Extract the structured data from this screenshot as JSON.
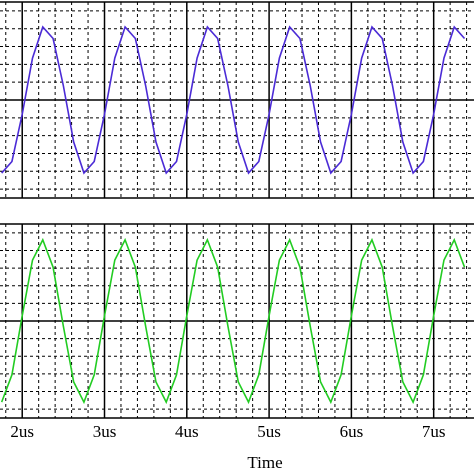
{
  "chart_data": [
    {
      "type": "line",
      "x": [
        1.75,
        1.875,
        2,
        2.125,
        2.25,
        2.375,
        2.5,
        2.625,
        2.75,
        2.875,
        3,
        3.125,
        3.25,
        3.375,
        3.5,
        3.625,
        3.75,
        3.875,
        4,
        4.125,
        4.25,
        4.375,
        4.5,
        4.625,
        4.75,
        4.875,
        5,
        5.125,
        5.25,
        5.375,
        5.5,
        5.625,
        5.75,
        5.875,
        6,
        6.125,
        6.25,
        6.375,
        6.5,
        6.625,
        6.75,
        6.875,
        7,
        7.125,
        7.25,
        7.375
      ],
      "series": [
        {
          "color": "#4b2bd6",
          "values": [
            -0.82,
            -0.69,
            -0.16,
            0.47,
            0.82,
            0.69,
            0.16,
            -0.47,
            -0.82,
            -0.69,
            -0.16,
            0.47,
            0.82,
            0.69,
            0.16,
            -0.47,
            -0.82,
            -0.69,
            -0.16,
            0.47,
            0.82,
            0.69,
            0.16,
            -0.47,
            -0.82,
            -0.69,
            -0.16,
            0.47,
            0.82,
            0.69,
            0.16,
            -0.47,
            -0.82,
            -0.69,
            -0.16,
            0.47,
            0.82,
            0.69,
            0.16,
            -0.47,
            -0.82,
            -0.69,
            -0.16,
            0.47,
            0.82,
            0.69
          ]
        }
      ],
      "xlim": [
        1.73,
        7.49
      ],
      "ylim": [
        -1.1,
        1.1
      ],
      "xticks": [
        2,
        3,
        4,
        5,
        6,
        7
      ],
      "minor_xticks": [
        1.8,
        2.2,
        2.4,
        2.6,
        2.8,
        3.2,
        3.4,
        3.6,
        3.8,
        4.2,
        4.4,
        4.6,
        4.8,
        5.2,
        5.4,
        5.6,
        5.8,
        6.2,
        6.4,
        6.6,
        6.8,
        7.2,
        7.4
      ],
      "yticks": [
        -1,
        -0.8,
        -0.6,
        -0.4,
        -0.2,
        0,
        0.2,
        0.4,
        0.6,
        0.8,
        1
      ],
      "grid": true
    },
    {
      "type": "line",
      "x": [
        1.75,
        1.875,
        2,
        2.125,
        2.25,
        2.375,
        2.5,
        2.625,
        2.75,
        2.875,
        3,
        3.125,
        3.25,
        3.375,
        3.5,
        3.625,
        3.75,
        3.875,
        4,
        4.125,
        4.25,
        4.375,
        4.5,
        4.625,
        4.75,
        4.875,
        5,
        5.125,
        5.25,
        5.375,
        5.5,
        5.625,
        5.75,
        5.875,
        6,
        6.125,
        6.25,
        6.375,
        6.5,
        6.625,
        6.75,
        6.875,
        7,
        7.125,
        7.25,
        7.375
      ],
      "series": [
        {
          "color": "#22cc22",
          "values": [
            -0.92,
            -0.61,
            0.06,
            0.69,
            0.92,
            0.61,
            -0.06,
            -0.69,
            -0.92,
            -0.61,
            0.06,
            0.69,
            0.92,
            0.61,
            -0.06,
            -0.69,
            -0.92,
            -0.61,
            0.06,
            0.69,
            0.92,
            0.61,
            -0.06,
            -0.69,
            -0.92,
            -0.61,
            0.06,
            0.69,
            0.92,
            0.61,
            -0.06,
            -0.69,
            -0.92,
            -0.61,
            0.06,
            0.69,
            0.92,
            0.61,
            -0.06,
            -0.69,
            -0.92,
            -0.61,
            0.06,
            0.69,
            0.92,
            0.61
          ]
        }
      ],
      "xlim": [
        1.73,
        7.49
      ],
      "ylim": [
        -1.1,
        1.1
      ],
      "xticks": [
        {
          "value": 2,
          "label": "2us"
        },
        {
          "value": 3,
          "label": "3us"
        },
        {
          "value": 4,
          "label": "4us"
        },
        {
          "value": 5,
          "label": "5us"
        },
        {
          "value": 6,
          "label": "6us"
        },
        {
          "value": 7,
          "label": "7us"
        }
      ],
      "minor_xticks": [
        1.8,
        2.2,
        2.4,
        2.6,
        2.8,
        3.2,
        3.4,
        3.6,
        3.8,
        4.2,
        4.4,
        4.6,
        4.8,
        5.2,
        5.4,
        5.6,
        5.8,
        6.2,
        6.4,
        6.6,
        6.8,
        7.2,
        7.4
      ],
      "yticks": [
        -1,
        -0.8,
        -0.6,
        -0.4,
        -0.2,
        0,
        0.2,
        0.4,
        0.6,
        0.8,
        1
      ],
      "xlabel": "Time",
      "grid": true
    }
  ]
}
